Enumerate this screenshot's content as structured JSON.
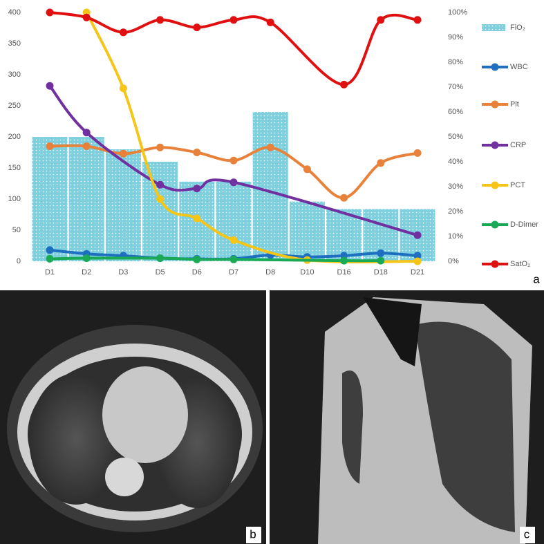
{
  "chart_data": {
    "type": "combo",
    "categories": [
      "D1",
      "D2",
      "D3",
      "D5",
      "D6",
      "D7",
      "D8",
      "D10",
      "D16",
      "D18",
      "D21"
    ],
    "ylim": [
      0,
      400
    ],
    "yticks": [
      0,
      50,
      100,
      150,
      200,
      250,
      300,
      350,
      400
    ],
    "y2lim": [
      0,
      100
    ],
    "y2ticks": [
      {
        "value": 0,
        "label": "0%"
      },
      {
        "value": 10,
        "label": "10%"
      },
      {
        "value": 20,
        "label": "20%"
      },
      {
        "value": 30,
        "label": "30%"
      },
      {
        "value": 40,
        "label": "40%"
      },
      {
        "value": 50,
        "label": "50%"
      },
      {
        "value": 60,
        "label": "60%"
      },
      {
        "value": 70,
        "label": "70%"
      },
      {
        "value": 80,
        "label": "80%"
      },
      {
        "value": 90,
        "label": "90%"
      },
      {
        "value": 100,
        "label": "100%"
      }
    ],
    "smooth": true,
    "connect_gaps": true,
    "legend": "right",
    "series": [
      {
        "name": "FiO₂",
        "kind": "bar",
        "axis": "y2",
        "color": "#7fd0de",
        "values": [
          50,
          50,
          45,
          40,
          32,
          32,
          60,
          24,
          21,
          21,
          21
        ]
      },
      {
        "name": "WBC",
        "kind": "line",
        "color": "#1f6fc0",
        "values": [
          18,
          12,
          9,
          5,
          4,
          4,
          10,
          7,
          9,
          13,
          9
        ]
      },
      {
        "name": "Plt",
        "kind": "line",
        "color": "#e8823a",
        "values": [
          185,
          185,
          173,
          183,
          175,
          162,
          183,
          148,
          102,
          158,
          174
        ]
      },
      {
        "name": "CRP",
        "kind": "line",
        "color": "#7030a0",
        "values": [
          282,
          207,
          null,
          123,
          117,
          127,
          null,
          null,
          null,
          null,
          42
        ]
      },
      {
        "name": "PCT",
        "kind": "line",
        "color": "#f5c518",
        "values": [
          null,
          400,
          278,
          100,
          69,
          34,
          null,
          2,
          null,
          null,
          0
        ]
      },
      {
        "name": "D-Dimer",
        "kind": "line",
        "color": "#1aaa55",
        "values": [
          4,
          5,
          null,
          5,
          3,
          3,
          null,
          null,
          1,
          1,
          null
        ]
      },
      {
        "name": "SatO₂",
        "kind": "line",
        "axis": "y2",
        "color": "#e01010",
        "values": [
          100,
          98,
          92,
          97,
          94,
          97,
          96,
          null,
          71,
          97,
          97
        ]
      }
    ]
  },
  "panel_labels": [
    "a",
    "b",
    "c"
  ]
}
